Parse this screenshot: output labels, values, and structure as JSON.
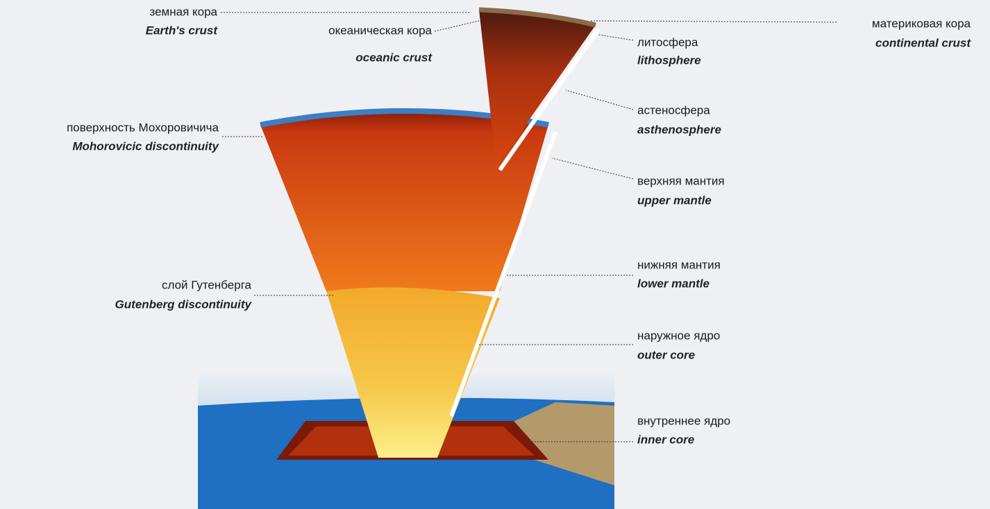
{
  "labels": [
    {
      "ru": "земная кора",
      "en": "Earth's crust"
    },
    {
      "ru": "океаническая кора",
      "en": "oceanic crust"
    },
    {
      "ru": "материковая кора",
      "en": "continental crust"
    },
    {
      "ru": "литосфера",
      "en": "lithosphere"
    },
    {
      "ru": "астеносфера",
      "en": "asthenosphere"
    },
    {
      "ru": "поверхность Мохоровичича",
      "en": "Mohorovicic discontinuity"
    },
    {
      "ru": "верхняя мантия",
      "en": "upper mantle"
    },
    {
      "ru": "нижняя мантия",
      "en": "lower mantle"
    },
    {
      "ru": "слой Гутенберга",
      "en": "Gutenberg discontinuity"
    },
    {
      "ru": "наружное ядро",
      "en": "outer core"
    },
    {
      "ru": "внутреннее ядро",
      "en": "inner core"
    }
  ]
}
